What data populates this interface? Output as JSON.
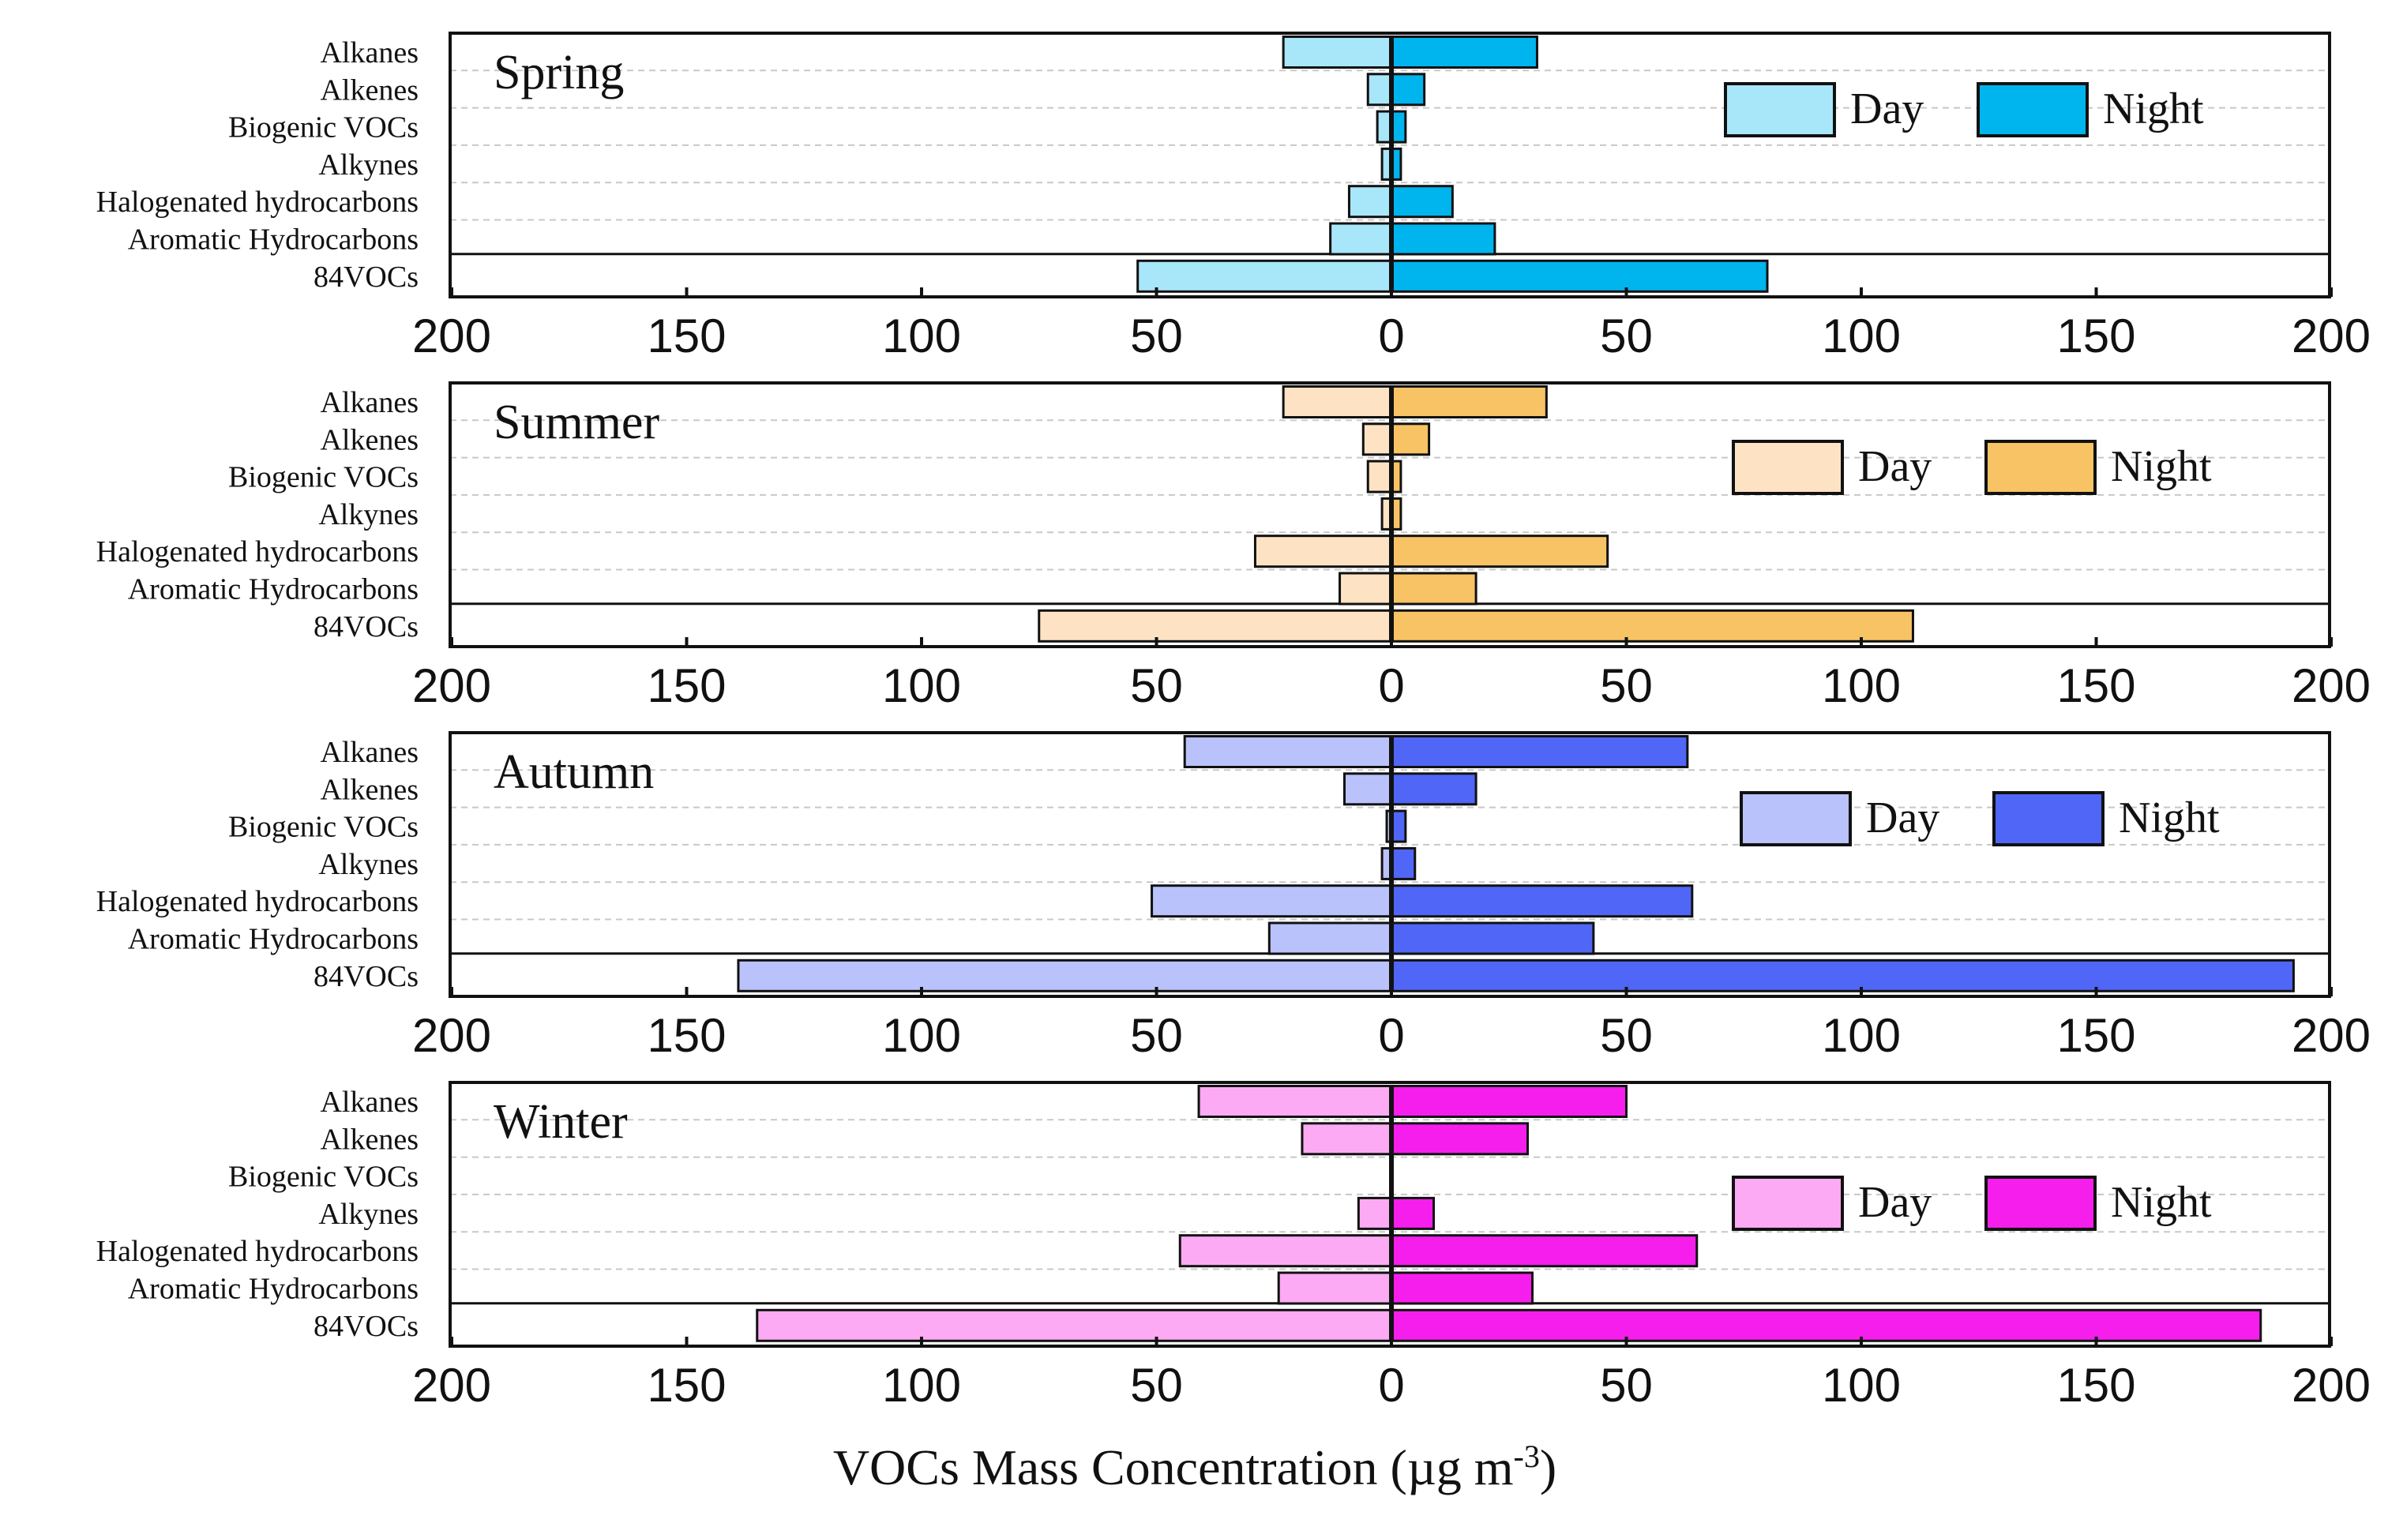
{
  "chart_data": {
    "type": "bar",
    "orientation": "horizontal-diverging",
    "xlabel": "VOCs  Mass Concentration (µg m",
    "xlabel_superscript": "-3",
    "xlabel_close": ")",
    "xlim": [
      -200,
      200
    ],
    "xtick_labels": [
      "200",
      "150",
      "100",
      "50",
      "0",
      "50",
      "100",
      "150",
      "200"
    ],
    "categories": [
      "Alkanes",
      "Alkenes",
      "Biogenic VOCs",
      "Alkynes",
      "Halogenated hydrocarbons",
      "Aromatic Hydrocarbons",
      "84VOCs"
    ],
    "legend": {
      "day": "Day",
      "night": "Night",
      "position": "top-right"
    },
    "panels": [
      {
        "title": "Spring",
        "colors": {
          "day": "#a8e6fa",
          "night": "#00b4ee"
        },
        "series": [
          {
            "name": "Day",
            "values": [
              23,
              5,
              3,
              2,
              9,
              13,
              54
            ]
          },
          {
            "name": "Night",
            "values": [
              31,
              7,
              3,
              2,
              13,
              22,
              80
            ]
          }
        ]
      },
      {
        "title": "Summer",
        "colors": {
          "day": "#fde3c4",
          "night": "#f8c364"
        },
        "series": [
          {
            "name": "Day",
            "values": [
              23,
              6,
              5,
              2,
              29,
              11,
              75
            ]
          },
          {
            "name": "Night",
            "values": [
              33,
              8,
              2,
              2,
              46,
              18,
              111
            ]
          }
        ]
      },
      {
        "title": "Autumn",
        "colors": {
          "day": "#b9c2fb",
          "night": "#4f66f6"
        },
        "series": [
          {
            "name": "Day",
            "values": [
              44,
              10,
              1,
              2,
              51,
              26,
              139
            ]
          },
          {
            "name": "Night",
            "values": [
              63,
              18,
              3,
              5,
              64,
              43,
              192
            ]
          }
        ]
      },
      {
        "title": "Winter",
        "colors": {
          "day": "#fcaaf3",
          "night": "#f61eec"
        },
        "series": [
          {
            "name": "Day",
            "values": [
              41,
              19,
              0,
              7,
              45,
              24,
              135
            ]
          },
          {
            "name": "Night",
            "values": [
              50,
              29,
              0,
              9,
              65,
              30,
              185
            ]
          }
        ]
      }
    ]
  }
}
